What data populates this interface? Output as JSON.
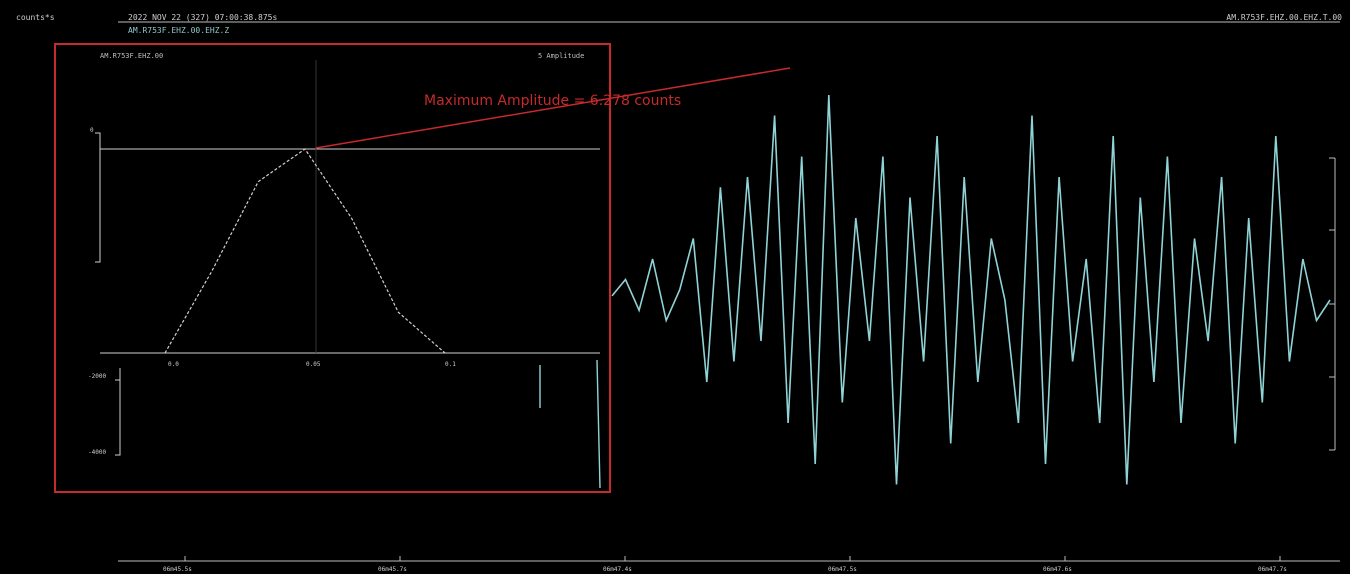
{
  "header": {
    "ylabel": "counts*s",
    "timestamp": "2022 NOV 22 (327) 07:00:38.875s",
    "channel_left": "AM.R753F.EHZ.00.EHZ.Z",
    "channel_right": "AM.R753F.EHZ.00.EHZ.T.00"
  },
  "inset": {
    "title": "AM.R753F.EHZ.00",
    "right_label": "5 Amplitude",
    "y_ticks": [
      "0",
      "-2000",
      "-4000"
    ],
    "x_ticks": [
      "0.0",
      "0.05",
      "0.1"
    ]
  },
  "annotation": "Maximum Amplitude = 6.278  counts",
  "chart_data": {
    "type": "line",
    "title": "",
    "xlabel": "",
    "ylabel": "counts*s",
    "x_ticks": [
      "06m45.5s",
      "06m45.7s",
      "06m47.4s",
      "06m47.5s",
      "06m47.6s",
      "06m47.7s"
    ],
    "series": [
      {
        "values": [
          0.02,
          0.1,
          -0.05,
          0.2,
          -0.1,
          0.05,
          0.3,
          -0.4,
          0.55,
          -0.3,
          0.6,
          -0.2,
          0.9,
          -0.6,
          0.7,
          -0.8,
          1.0,
          -0.5,
          0.4,
          -0.2,
          0.7,
          -0.9,
          0.5,
          -0.3,
          0.8,
          -0.7,
          0.6,
          -0.4,
          0.3,
          0.0,
          -0.6,
          0.9,
          -0.8,
          0.6,
          -0.3,
          0.2,
          -0.6,
          0.8,
          -0.9,
          0.5,
          -0.4,
          0.7,
          -0.6,
          0.3,
          -0.2,
          0.6,
          -0.7,
          0.4,
          -0.5,
          0.8,
          -0.3,
          0.2,
          -0.1,
          0.0
        ]
      }
    ],
    "inset": {
      "type": "line",
      "x": [
        0,
        1,
        2,
        3,
        4,
        5,
        6
      ],
      "values": [
        0.0,
        0.4,
        0.84,
        1.0,
        0.66,
        0.2,
        0.0
      ],
      "y_ticks": [
        "0",
        "-2000",
        "-4000"
      ],
      "x_ticks": [
        "0.0",
        "0.05",
        "0.1"
      ]
    },
    "max_amplitude": 6.278,
    "colors": {
      "trace": "#8fd3d6",
      "frame": "#c62a2a",
      "annotation": "#c62a2a"
    }
  }
}
